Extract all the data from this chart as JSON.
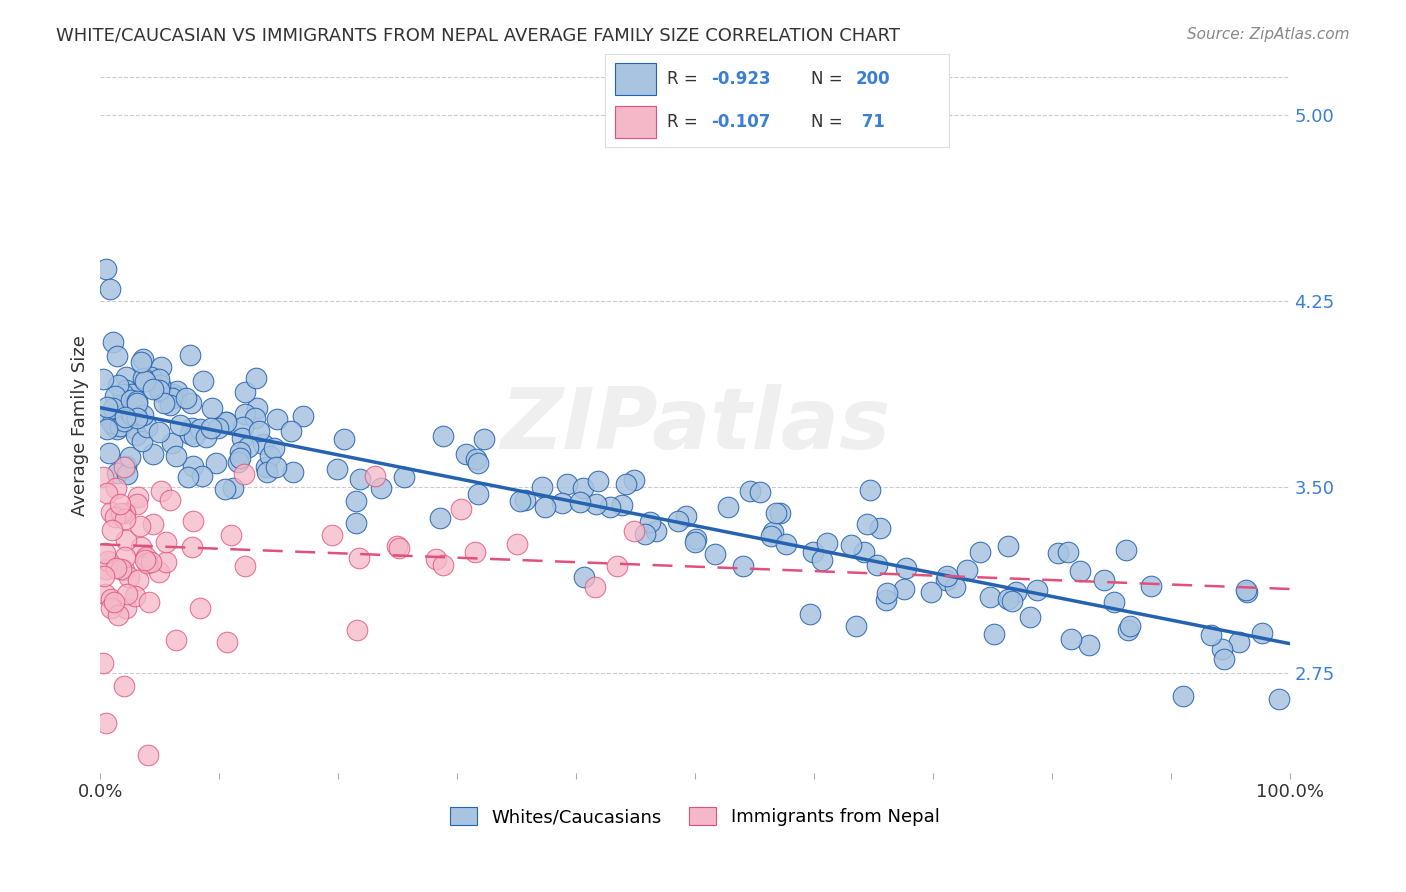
{
  "title": "WHITE/CAUCASIAN VS IMMIGRANTS FROM NEPAL AVERAGE FAMILY SIZE CORRELATION CHART",
  "source": "Source: ZipAtlas.com",
  "ylabel": "Average Family Size",
  "watermark": "ZIPatlas",
  "blue_R": "-0.923",
  "blue_N": 200,
  "pink_R": "-0.107",
  "pink_N": 71,
  "blue_color": "#a8c4e0",
  "blue_line_color": "#2563b0",
  "pink_color": "#f4b8c8",
  "pink_line_color": "#e0507a",
  "right_tick_color": "#3a7fd5",
  "yticks_right": [
    2.75,
    3.5,
    4.25,
    5.0
  ],
  "xlim": [
    0.0,
    1.0
  ],
  "ylim": [
    2.35,
    5.15
  ],
  "legend_labels": [
    "Whites/Caucasians",
    "Immigrants from Nepal"
  ],
  "blue_intercept": 3.82,
  "blue_slope": -0.95,
  "pink_intercept": 3.27,
  "pink_slope": -0.18,
  "background_color": "#ffffff",
  "grid_color": "#cccccc"
}
